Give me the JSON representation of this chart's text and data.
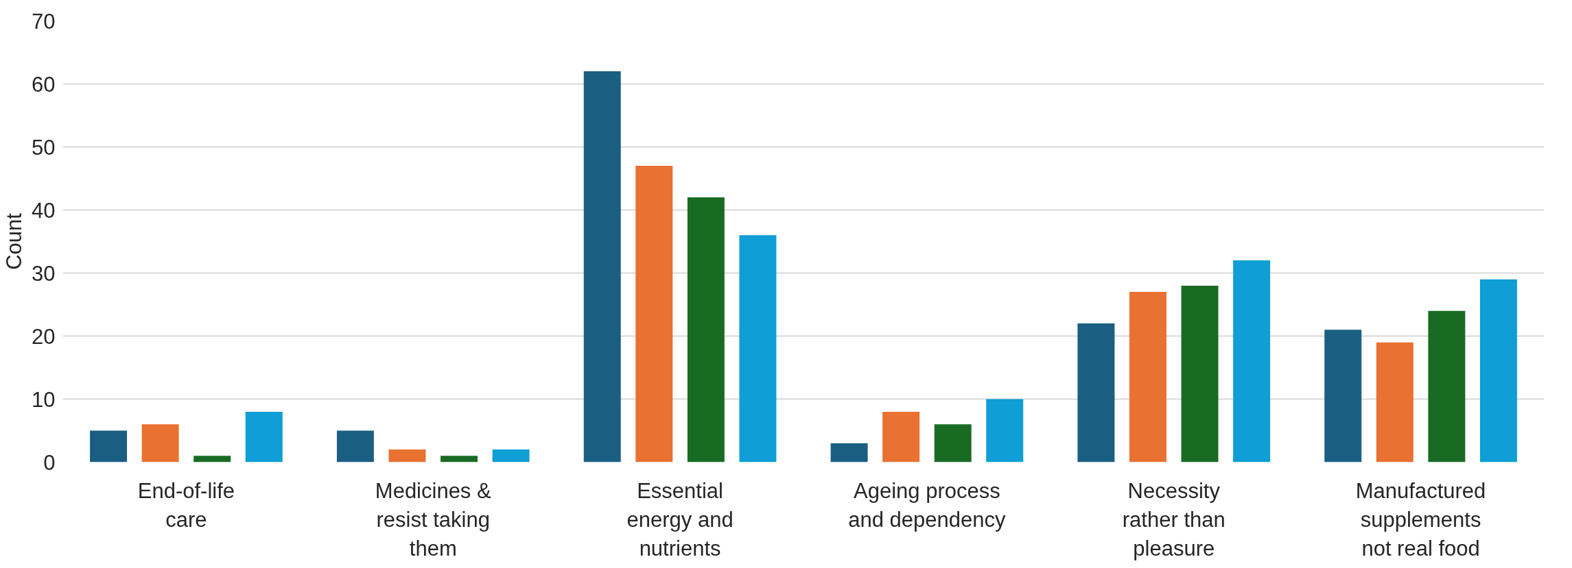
{
  "chart_data": {
    "type": "bar",
    "ylabel": "Count",
    "categories": [
      "End-of-life care",
      "Medicines & resist taking them",
      "Essential energy and nutrients",
      "Ageing process and dependency",
      "Necessity rather than pleasure",
      "Manufactured supplements not real food"
    ],
    "series": [
      {
        "color": "#1a5f82",
        "values": [
          5,
          5,
          62,
          3,
          22,
          21
        ]
      },
      {
        "color": "#e97132",
        "values": [
          6,
          2,
          47,
          8,
          27,
          19
        ]
      },
      {
        "color": "#196b24",
        "values": [
          1,
          1,
          42,
          6,
          28,
          24
        ]
      },
      {
        "color": "#0f9ed5",
        "values": [
          8,
          2,
          36,
          10,
          32,
          29
        ]
      }
    ],
    "ylim": [
      0,
      70
    ],
    "yticks": [
      0,
      10,
      20,
      30,
      40,
      50,
      60,
      70
    ],
    "grid": "y"
  }
}
